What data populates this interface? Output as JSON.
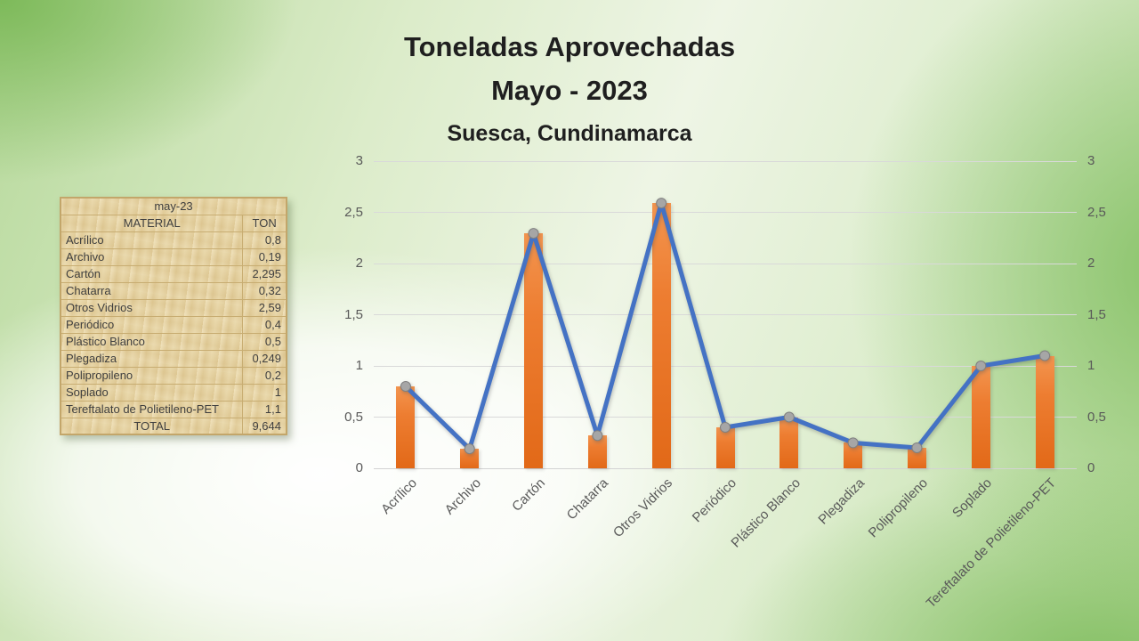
{
  "slide": {
    "title_line1": "Toneladas Aprovechadas",
    "title_line2": "Mayo - 2023",
    "subtitle": "Suesca, Cundinamarca"
  },
  "table": {
    "period_header": "may-23",
    "columns": [
      "MATERIAL",
      "TON"
    ],
    "rows": [
      {
        "material": "Acrílico",
        "ton": "0,8"
      },
      {
        "material": "Archivo",
        "ton": "0,19"
      },
      {
        "material": "Cartón",
        "ton": "2,295"
      },
      {
        "material": "Chatarra",
        "ton": "0,32"
      },
      {
        "material": "Otros Vidrios",
        "ton": "2,59"
      },
      {
        "material": "Periódico",
        "ton": "0,4"
      },
      {
        "material": "Plástico Blanco",
        "ton": "0,5"
      },
      {
        "material": "Plegadiza",
        "ton": "0,249"
      },
      {
        "material": "Polipropileno",
        "ton": "0,2"
      },
      {
        "material": "Soplado",
        "ton": "1"
      },
      {
        "material": "Tereftalato de Polietileno-PET",
        "ton": "1,1"
      }
    ],
    "total": {
      "label": "TOTAL",
      "value": "9,644"
    }
  },
  "chart_data": {
    "type": "bar",
    "title": "",
    "categories": [
      "Acrílico",
      "Archivo",
      "Cartón",
      "Chatarra",
      "Otros Vidrios",
      "Periódico",
      "Plástico Blanco",
      "Plegadiza",
      "Polipropileno",
      "Soplado",
      "Tereftalato de Polietileno-PET"
    ],
    "series": [
      {
        "type": "bar",
        "values": [
          0.8,
          0.19,
          2.295,
          0.32,
          2.59,
          0.4,
          0.5,
          0.249,
          0.2,
          1,
          1.1
        ],
        "color": "#ED7D31"
      },
      {
        "type": "line",
        "values": [
          0.8,
          0.19,
          2.295,
          0.32,
          2.59,
          0.4,
          0.5,
          0.249,
          0.2,
          1,
          1.1
        ],
        "color": "#4472C4",
        "marker_color": "#A6A6A6"
      }
    ],
    "ylim": [
      0,
      3
    ],
    "ytick_labels": [
      "0",
      "0,5",
      "1",
      "1,5",
      "2",
      "2,5",
      "3"
    ],
    "secondary_y_axis": true,
    "grid": "horizontal",
    "legend": "none",
    "colors": {
      "gridline": "#D9D9D9",
      "axis_text": "#595959"
    }
  }
}
